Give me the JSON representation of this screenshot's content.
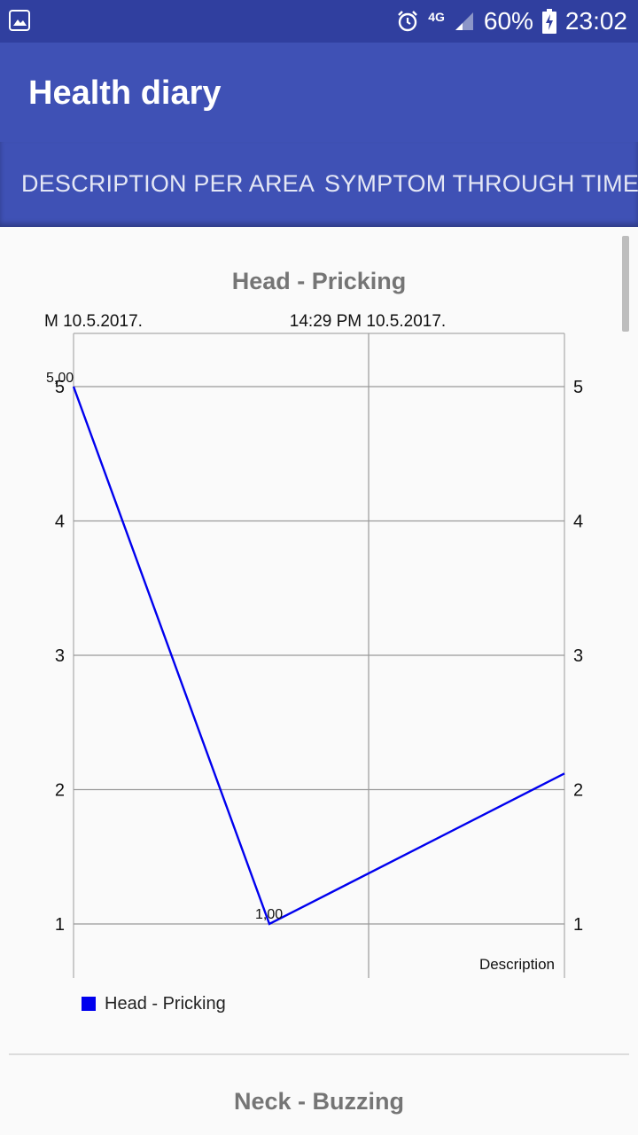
{
  "status_bar": {
    "network_label": "4G",
    "battery": "60%",
    "time": "23:02"
  },
  "app_bar": {
    "title": "Health diary"
  },
  "tabs": [
    {
      "label": "DESCRIPTION PER AREA"
    },
    {
      "label": "SYMPTOM THROUGH TIME"
    }
  ],
  "charts": [
    {
      "title": "Head - Pricking",
      "legend": "Head - Pricking",
      "x_tick_labels": [
        "M 10.5.2017.",
        "14:29 PM 10.5.2017."
      ],
      "corner_label": "Description",
      "point_labels": [
        "5,00",
        "1,00"
      ]
    },
    {
      "title": "Neck - Buzzing"
    }
  ],
  "chart_data": {
    "type": "line",
    "title": "Head - Pricking",
    "x_tick_labels": [
      "M 10.5.2017.",
      "14:29 PM 10.5.2017."
    ],
    "series": [
      {
        "name": "Head - Pricking",
        "color": "#0000ee",
        "values": [
          5,
          1,
          2.12
        ],
        "point_labels": [
          "5,00",
          "1,00",
          ""
        ]
      }
    ],
    "y_ticks": [
      1,
      2,
      3,
      4,
      5
    ],
    "ylim": [
      0.6,
      5.4
    ],
    "grid": true,
    "legend": "bottom-left",
    "corner_label": "Description"
  }
}
